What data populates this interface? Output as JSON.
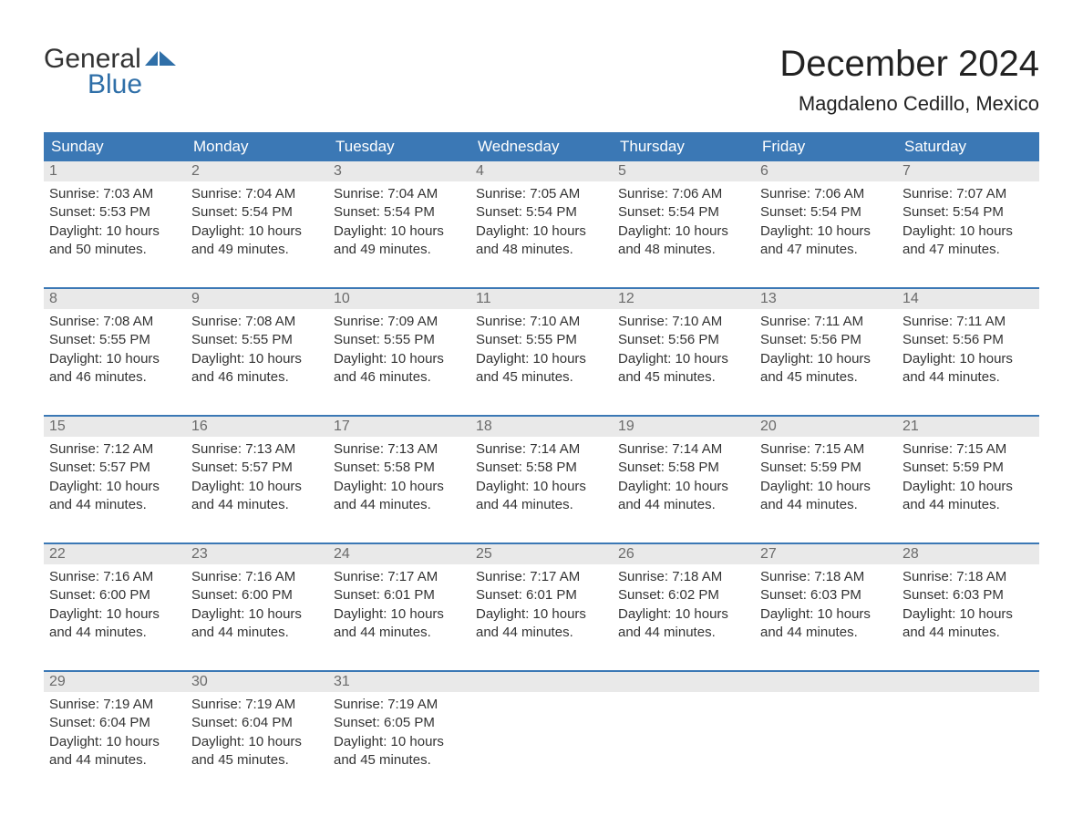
{
  "brand": {
    "word1": "General",
    "word2": "Blue",
    "flag_color": "#2f6fa8",
    "text_color": "#333333"
  },
  "header": {
    "month_title": "December 2024",
    "location": "Magdaleno Cedillo, Mexico"
  },
  "colors": {
    "header_bg": "#3b78b5",
    "header_text": "#ffffff",
    "daynum_bg": "#e9e9e9",
    "daynum_text": "#6b6b6b",
    "body_text": "#333333",
    "week_border": "#3b78b5",
    "background": "#ffffff"
  },
  "weekdays": [
    "Sunday",
    "Monday",
    "Tuesday",
    "Wednesday",
    "Thursday",
    "Friday",
    "Saturday"
  ],
  "weeks": [
    [
      {
        "n": "1",
        "sr": "Sunrise: 7:03 AM",
        "ss": "Sunset: 5:53 PM",
        "d1": "Daylight: 10 hours",
        "d2": "and 50 minutes."
      },
      {
        "n": "2",
        "sr": "Sunrise: 7:04 AM",
        "ss": "Sunset: 5:54 PM",
        "d1": "Daylight: 10 hours",
        "d2": "and 49 minutes."
      },
      {
        "n": "3",
        "sr": "Sunrise: 7:04 AM",
        "ss": "Sunset: 5:54 PM",
        "d1": "Daylight: 10 hours",
        "d2": "and 49 minutes."
      },
      {
        "n": "4",
        "sr": "Sunrise: 7:05 AM",
        "ss": "Sunset: 5:54 PM",
        "d1": "Daylight: 10 hours",
        "d2": "and 48 minutes."
      },
      {
        "n": "5",
        "sr": "Sunrise: 7:06 AM",
        "ss": "Sunset: 5:54 PM",
        "d1": "Daylight: 10 hours",
        "d2": "and 48 minutes."
      },
      {
        "n": "6",
        "sr": "Sunrise: 7:06 AM",
        "ss": "Sunset: 5:54 PM",
        "d1": "Daylight: 10 hours",
        "d2": "and 47 minutes."
      },
      {
        "n": "7",
        "sr": "Sunrise: 7:07 AM",
        "ss": "Sunset: 5:54 PM",
        "d1": "Daylight: 10 hours",
        "d2": "and 47 minutes."
      }
    ],
    [
      {
        "n": "8",
        "sr": "Sunrise: 7:08 AM",
        "ss": "Sunset: 5:55 PM",
        "d1": "Daylight: 10 hours",
        "d2": "and 46 minutes."
      },
      {
        "n": "9",
        "sr": "Sunrise: 7:08 AM",
        "ss": "Sunset: 5:55 PM",
        "d1": "Daylight: 10 hours",
        "d2": "and 46 minutes."
      },
      {
        "n": "10",
        "sr": "Sunrise: 7:09 AM",
        "ss": "Sunset: 5:55 PM",
        "d1": "Daylight: 10 hours",
        "d2": "and 46 minutes."
      },
      {
        "n": "11",
        "sr": "Sunrise: 7:10 AM",
        "ss": "Sunset: 5:55 PM",
        "d1": "Daylight: 10 hours",
        "d2": "and 45 minutes."
      },
      {
        "n": "12",
        "sr": "Sunrise: 7:10 AM",
        "ss": "Sunset: 5:56 PM",
        "d1": "Daylight: 10 hours",
        "d2": "and 45 minutes."
      },
      {
        "n": "13",
        "sr": "Sunrise: 7:11 AM",
        "ss": "Sunset: 5:56 PM",
        "d1": "Daylight: 10 hours",
        "d2": "and 45 minutes."
      },
      {
        "n": "14",
        "sr": "Sunrise: 7:11 AM",
        "ss": "Sunset: 5:56 PM",
        "d1": "Daylight: 10 hours",
        "d2": "and 44 minutes."
      }
    ],
    [
      {
        "n": "15",
        "sr": "Sunrise: 7:12 AM",
        "ss": "Sunset: 5:57 PM",
        "d1": "Daylight: 10 hours",
        "d2": "and 44 minutes."
      },
      {
        "n": "16",
        "sr": "Sunrise: 7:13 AM",
        "ss": "Sunset: 5:57 PM",
        "d1": "Daylight: 10 hours",
        "d2": "and 44 minutes."
      },
      {
        "n": "17",
        "sr": "Sunrise: 7:13 AM",
        "ss": "Sunset: 5:58 PM",
        "d1": "Daylight: 10 hours",
        "d2": "and 44 minutes."
      },
      {
        "n": "18",
        "sr": "Sunrise: 7:14 AM",
        "ss": "Sunset: 5:58 PM",
        "d1": "Daylight: 10 hours",
        "d2": "and 44 minutes."
      },
      {
        "n": "19",
        "sr": "Sunrise: 7:14 AM",
        "ss": "Sunset: 5:58 PM",
        "d1": "Daylight: 10 hours",
        "d2": "and 44 minutes."
      },
      {
        "n": "20",
        "sr": "Sunrise: 7:15 AM",
        "ss": "Sunset: 5:59 PM",
        "d1": "Daylight: 10 hours",
        "d2": "and 44 minutes."
      },
      {
        "n": "21",
        "sr": "Sunrise: 7:15 AM",
        "ss": "Sunset: 5:59 PM",
        "d1": "Daylight: 10 hours",
        "d2": "and 44 minutes."
      }
    ],
    [
      {
        "n": "22",
        "sr": "Sunrise: 7:16 AM",
        "ss": "Sunset: 6:00 PM",
        "d1": "Daylight: 10 hours",
        "d2": "and 44 minutes."
      },
      {
        "n": "23",
        "sr": "Sunrise: 7:16 AM",
        "ss": "Sunset: 6:00 PM",
        "d1": "Daylight: 10 hours",
        "d2": "and 44 minutes."
      },
      {
        "n": "24",
        "sr": "Sunrise: 7:17 AM",
        "ss": "Sunset: 6:01 PM",
        "d1": "Daylight: 10 hours",
        "d2": "and 44 minutes."
      },
      {
        "n": "25",
        "sr": "Sunrise: 7:17 AM",
        "ss": "Sunset: 6:01 PM",
        "d1": "Daylight: 10 hours",
        "d2": "and 44 minutes."
      },
      {
        "n": "26",
        "sr": "Sunrise: 7:18 AM",
        "ss": "Sunset: 6:02 PM",
        "d1": "Daylight: 10 hours",
        "d2": "and 44 minutes."
      },
      {
        "n": "27",
        "sr": "Sunrise: 7:18 AM",
        "ss": "Sunset: 6:03 PM",
        "d1": "Daylight: 10 hours",
        "d2": "and 44 minutes."
      },
      {
        "n": "28",
        "sr": "Sunrise: 7:18 AM",
        "ss": "Sunset: 6:03 PM",
        "d1": "Daylight: 10 hours",
        "d2": "and 44 minutes."
      }
    ],
    [
      {
        "n": "29",
        "sr": "Sunrise: 7:19 AM",
        "ss": "Sunset: 6:04 PM",
        "d1": "Daylight: 10 hours",
        "d2": "and 44 minutes."
      },
      {
        "n": "30",
        "sr": "Sunrise: 7:19 AM",
        "ss": "Sunset: 6:04 PM",
        "d1": "Daylight: 10 hours",
        "d2": "and 45 minutes."
      },
      {
        "n": "31",
        "sr": "Sunrise: 7:19 AM",
        "ss": "Sunset: 6:05 PM",
        "d1": "Daylight: 10 hours",
        "d2": "and 45 minutes."
      },
      {
        "empty": true
      },
      {
        "empty": true
      },
      {
        "empty": true
      },
      {
        "empty": true
      }
    ]
  ]
}
